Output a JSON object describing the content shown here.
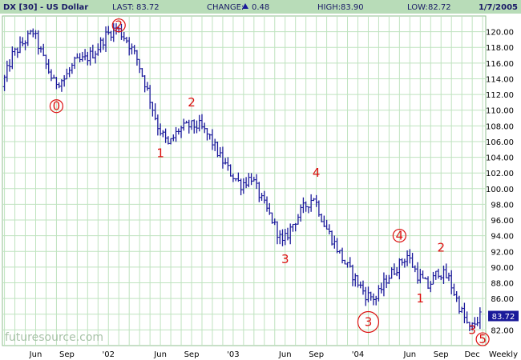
{
  "header": {
    "symbol": "DX [30] - US Dollar",
    "last_label": "LAST:",
    "last_value": "83.72",
    "change_label": "CHANGE:",
    "change_value": "0.48",
    "high_label": "HIGH:",
    "high_value": "83.90",
    "low_label": "LOW:",
    "low_value": "82.72",
    "date": "1/7/2005"
  },
  "footer": {
    "watermark": "futuresource.com",
    "period": "Weekly"
  },
  "colors": {
    "header_bg": "#b8dcb8",
    "grid": "#bfe3bf",
    "price_bar": "#1a1a9a",
    "annotation": "#dd1111",
    "last_box_bg": "#1a1a9a"
  },
  "chart_data": {
    "type": "line",
    "subtype": "weekly-ohlc-bars",
    "title": "DX [30] - US Dollar",
    "ylim": [
      80.0,
      122.0
    ],
    "y_ticks": [
      "120.00",
      "118.00",
      "116.00",
      "114.00",
      "112.00",
      "110.00",
      "108.00",
      "106.00",
      "104.00",
      "102.00",
      "100.00",
      "98.00",
      "96.00",
      "94.00",
      "92.00",
      "90.00",
      "88.00",
      "86.00",
      "84.00",
      "82.00"
    ],
    "x_ticks": [
      "Jun",
      "Sep",
      "'02",
      "Jun",
      "Sep",
      "'03",
      "Jun",
      "Sep",
      "'04",
      "Jun",
      "Sep",
      "Dec"
    ],
    "last_price": "83.72",
    "series": [
      {
        "x": [
          "2001-03",
          "2001-04",
          "2001-05",
          "2001-06",
          "2001-07",
          "2001-08",
          "2001-09",
          "2001-10",
          "2001-11",
          "2001-12",
          "2002-01",
          "2002-02",
          "2002-03",
          "2002-04",
          "2002-05",
          "2002-06",
          "2002-07",
          "2002-08",
          "2002-09",
          "2002-10",
          "2002-11",
          "2002-12",
          "2003-01",
          "2003-02",
          "2003-03",
          "2003-04",
          "2003-05",
          "2003-06",
          "2003-07",
          "2003-08",
          "2003-09",
          "2003-10",
          "2003-11",
          "2003-12",
          "2004-01",
          "2004-02",
          "2004-03",
          "2004-04",
          "2004-05",
          "2004-06",
          "2004-07",
          "2004-08",
          "2004-09",
          "2004-10",
          "2004-11",
          "2004-12",
          "2005-01"
        ],
        "y": [
          113.0,
          117.0,
          118.5,
          120.0,
          116.5,
          113.5,
          114.0,
          116.0,
          116.5,
          117.5,
          119.5,
          120.5,
          119.0,
          116.5,
          112.5,
          108.0,
          105.5,
          107.5,
          108.0,
          108.0,
          106.5,
          104.0,
          102.0,
          100.5,
          101.5,
          98.5,
          96.0,
          93.0,
          95.5,
          97.5,
          99.0,
          95.5,
          93.0,
          90.5,
          88.5,
          86.5,
          86.0,
          88.5,
          90.0,
          91.5,
          89.0,
          87.5,
          89.5,
          88.5,
          85.0,
          82.0,
          83.72
        ]
      }
    ],
    "annotations": [
      {
        "label": "0",
        "date": "2001-08",
        "price": 110.0
      },
      {
        "label": "2",
        "date": "2002-02",
        "price": 120.3
      },
      {
        "label": "1",
        "date": "2002-06",
        "price": 104.0
      },
      {
        "label": "2",
        "date": "2002-09",
        "price": 110.5
      },
      {
        "label": "3",
        "date": "2003-06",
        "price": 90.5
      },
      {
        "label": "4",
        "date": "2003-09",
        "price": 101.5
      },
      {
        "label": "3",
        "date": "2004-02",
        "price": 82.5
      },
      {
        "label": "4",
        "date": "2004-05",
        "price": 93.5
      },
      {
        "label": "1",
        "date": "2004-07",
        "price": 85.5
      },
      {
        "label": "2",
        "date": "2004-09",
        "price": 92.0
      },
      {
        "label": "3",
        "date": "2004-12",
        "price": 81.5
      },
      {
        "label": "5",
        "date": "2005-01",
        "price": 80.3
      }
    ],
    "grid": true,
    "legend": "none"
  }
}
